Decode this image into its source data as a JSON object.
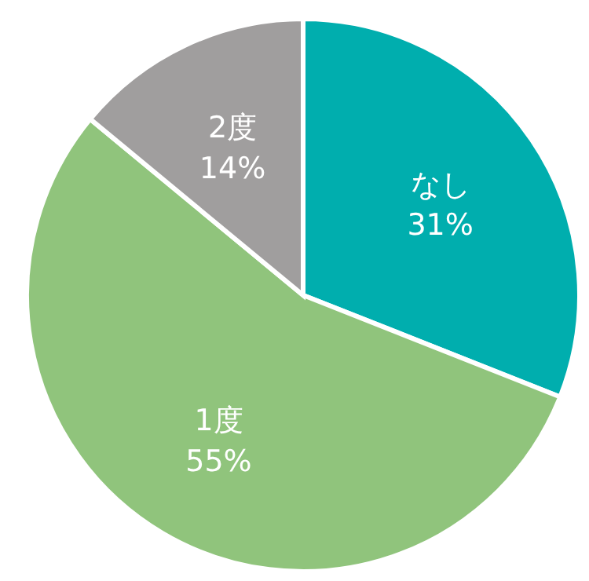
{
  "chart_data": {
    "type": "pie",
    "categories": [
      "なし",
      "1度",
      "2度"
    ],
    "values": [
      31,
      55,
      14
    ],
    "colors": [
      "#00aeae",
      "#90c47c",
      "#a09e9e"
    ],
    "value_labels": [
      "31%",
      "55%",
      "14%"
    ]
  }
}
